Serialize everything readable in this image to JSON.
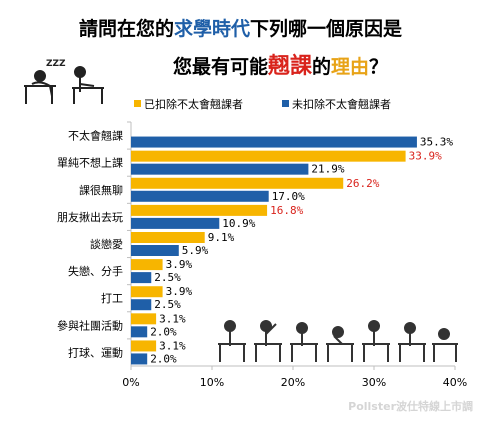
{
  "title": {
    "line1_parts": [
      "請問在您的",
      "求學時代",
      "下列哪一個原因是"
    ],
    "line2_parts": [
      "您最有可能",
      "翹課",
      "的",
      "理由",
      "？"
    ]
  },
  "colors": {
    "series1": "#f7b500",
    "series2": "#1f5fa8",
    "value_red": "#d9231c",
    "axis": "#bfbfbf"
  },
  "watermark": "Pollster波仕特線上市調",
  "chart_data": {
    "type": "bar",
    "orientation": "horizontal",
    "categories": [
      "不太會翹課",
      "單純不想上課",
      "課很無聊",
      "朋友揪出去玩",
      "談戀愛",
      "失戀、分手",
      "打工",
      "參與社團活動",
      "打球、運動"
    ],
    "series": [
      {
        "name": "已扣除不太會翹課者",
        "values": [
          null,
          33.9,
          26.2,
          16.8,
          9.1,
          3.9,
          3.9,
          3.1,
          3.1
        ],
        "labels": [
          "",
          "33.9%",
          "26.2%",
          "16.8%",
          "9.1%",
          "3.9%",
          "3.9%",
          "3.1%",
          "3.1%"
        ]
      },
      {
        "name": "未扣除不太會翹課者",
        "values": [
          35.3,
          21.9,
          17.0,
          10.9,
          5.9,
          2.5,
          2.5,
          2.0,
          2.0
        ],
        "labels": [
          "35.3%",
          "21.9%",
          "17.0%",
          "10.9%",
          "5.9%",
          "2.5%",
          "2.5%",
          "2.0%",
          "2.0%"
        ]
      }
    ],
    "red_labels": [
      "33.9%",
      "26.2%",
      "16.8%"
    ],
    "xlim": [
      0,
      40
    ],
    "xticks": [
      "0%",
      "10%",
      "20%",
      "30%",
      "40%"
    ],
    "legend_position": "top"
  }
}
